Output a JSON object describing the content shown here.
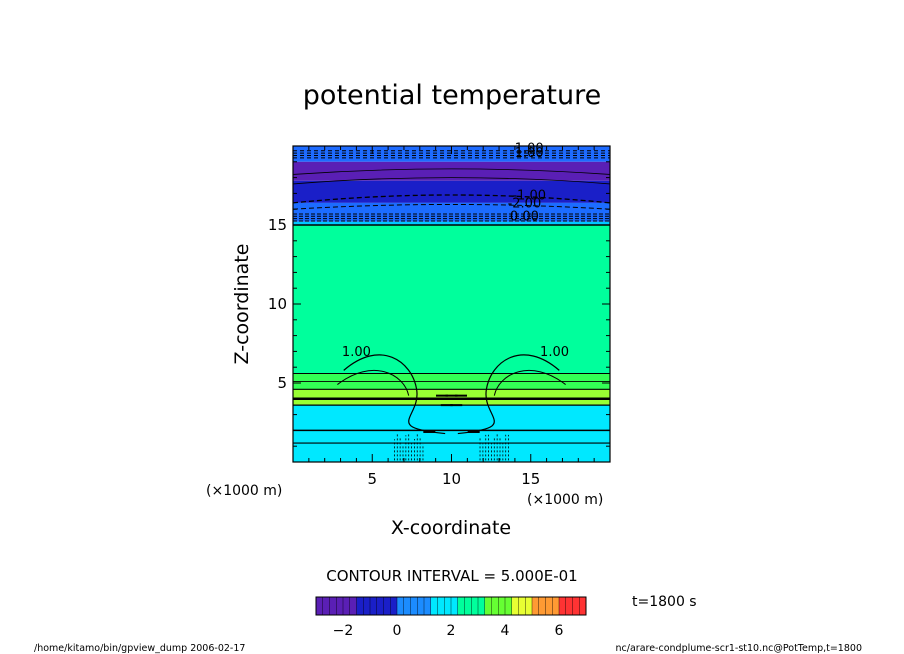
{
  "chart_data": {
    "type": "heatmap",
    "title": "potential temperature",
    "xlabel": "X-coordinate",
    "ylabel": "Z-coordinate",
    "x_unit": "(×1000 m)",
    "y_unit": "(×1000 m)",
    "xlim": [
      0,
      20
    ],
    "ylim": [
      0,
      20
    ],
    "x_ticks": [
      "5",
      "10",
      "15"
    ],
    "y_ticks": [
      "5",
      "10",
      "15"
    ],
    "contour_interval_text": "CONTOUR INTERVAL = 5.000E-01",
    "contour_labels": [
      "1.00",
      "1.00",
      "1.00",
      "-1.00",
      "-2.00",
      "0.00",
      "1.00"
    ],
    "colorbar": {
      "range": [
        -3,
        7
      ],
      "ticks": [
        "−2",
        "0",
        "2",
        "4",
        "6"
      ]
    },
    "bands": [
      {
        "z_from": 19.0,
        "z_to": 20.0,
        "color": "#1e6bff"
      },
      {
        "z_from": 17.8,
        "z_to": 19.0,
        "color": "#5a1fb5"
      },
      {
        "z_from": 16.4,
        "z_to": 17.8,
        "color": "#1a1fc8"
      },
      {
        "z_from": 15.2,
        "z_to": 16.4,
        "color": "#1c6cff"
      },
      {
        "z_from": 15.0,
        "z_to": 15.2,
        "color": "#00c8ff"
      },
      {
        "z_from": 5.6,
        "z_to": 15.0,
        "color": "#00ff9c"
      },
      {
        "z_from": 4.6,
        "z_to": 5.6,
        "color": "#33ff55"
      },
      {
        "z_from": 3.6,
        "z_to": 4.6,
        "color": "#99ff33"
      },
      {
        "z_from": 0.0,
        "z_to": 3.6,
        "color": "#00e8ff"
      }
    ]
  },
  "time_label": "t=1800 s",
  "footer": {
    "left": "/home/kitamo/bin/gpview_dump  2006-02-17",
    "right": "nc/arare-condplume-scr1-st10.nc@PotTemp,t=1800"
  }
}
